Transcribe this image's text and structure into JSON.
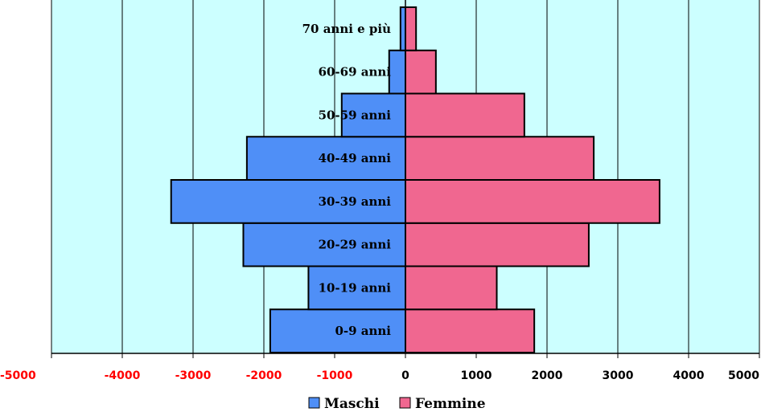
{
  "chart_data": {
    "type": "bar",
    "orientation": "horizontal",
    "categories": [
      "0-9 anni",
      "10-19 anni",
      "20-29 anni",
      "30-39 anni",
      "40-49 anni",
      "50-59 anni",
      "60-69 anni",
      "70 anni e più"
    ],
    "series": [
      {
        "name": "Maschi",
        "color": "#4f8ff7",
        "values": [
          -1910,
          -1370,
          -2290,
          -3310,
          -2240,
          -900,
          -230,
          -70
        ]
      },
      {
        "name": "Femmine",
        "color": "#f06790",
        "values": [
          1820,
          1290,
          2590,
          3590,
          2660,
          1680,
          430,
          150
        ]
      }
    ],
    "xlim": [
      -5000,
      5000
    ],
    "xticks": [
      "-5000",
      "-4000",
      "-3000",
      "-2000",
      "-1000",
      "0",
      "1000",
      "2000",
      "3000",
      "4000",
      "5000"
    ],
    "xtick_values": [
      -5000,
      -4000,
      -3000,
      -2000,
      -1000,
      0,
      1000,
      2000,
      3000,
      4000,
      5000
    ],
    "tick_colors": {
      "negative": "#ff0000",
      "positive": "#000000"
    },
    "plot_background": "#ccffff",
    "grid": "vertical",
    "legend_position": "bottom",
    "title": "",
    "xlabel": "",
    "ylabel": ""
  }
}
